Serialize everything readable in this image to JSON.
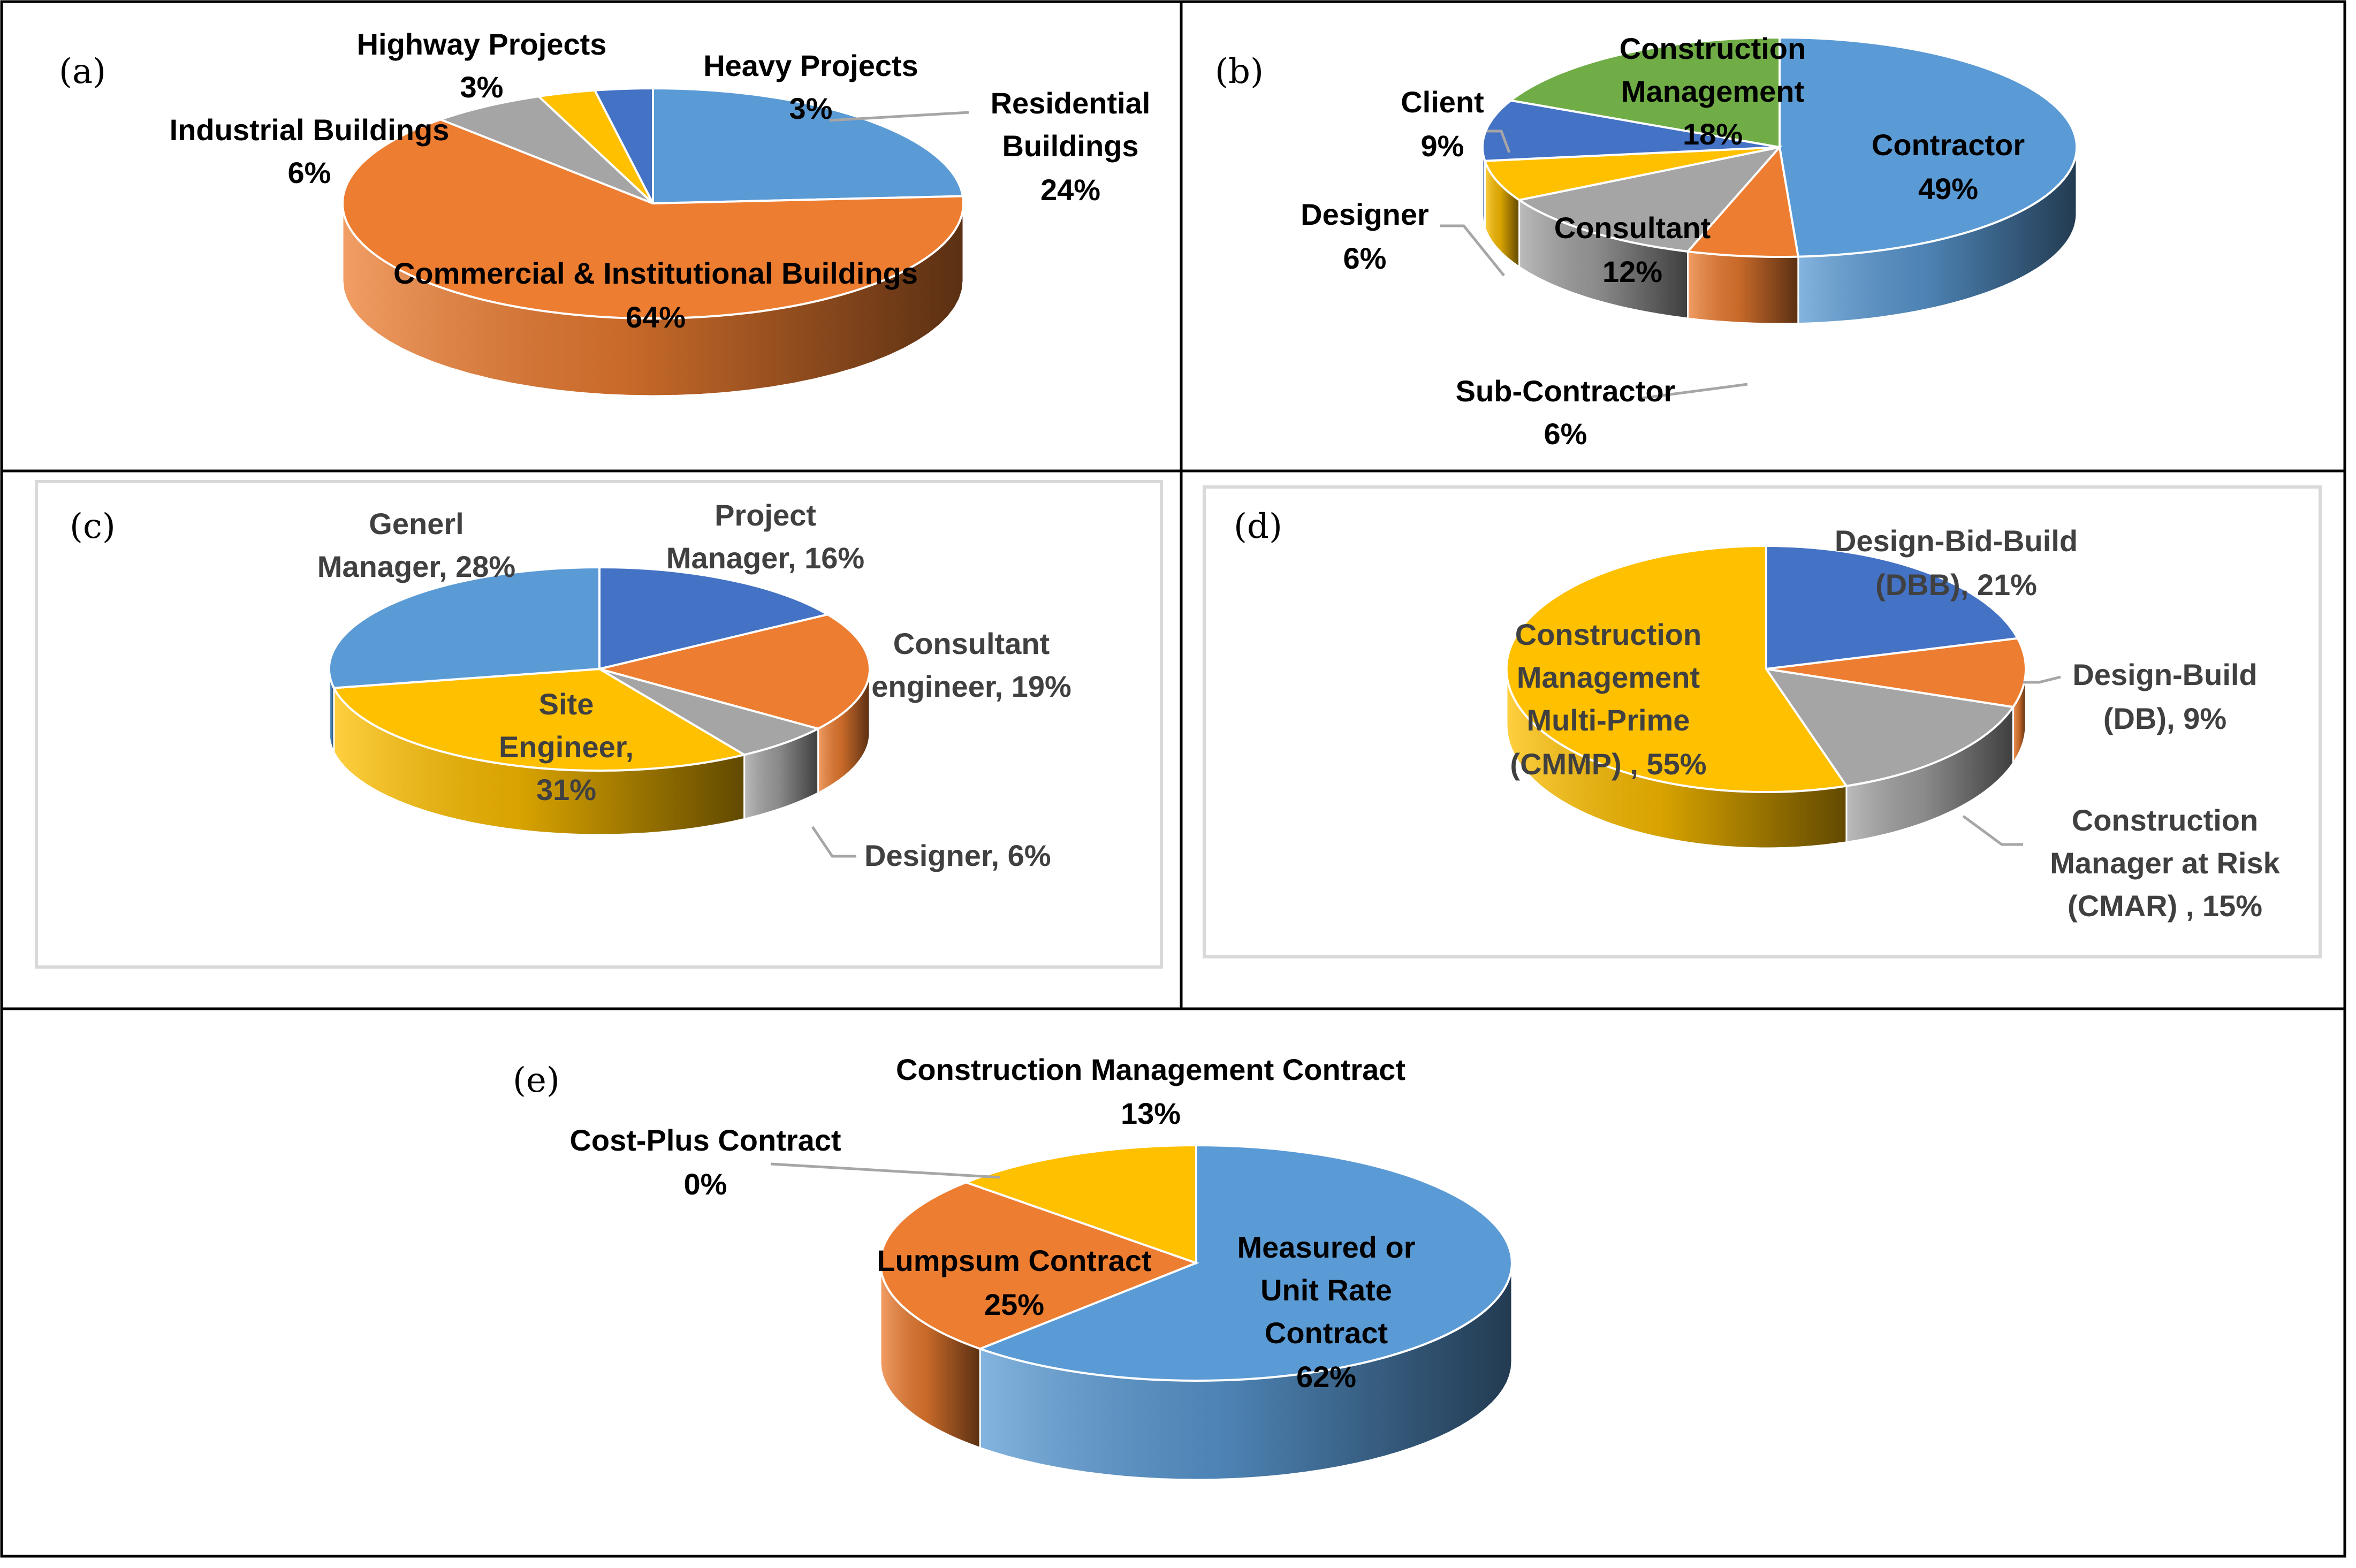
{
  "colors": {
    "blue": "#5B9BD5",
    "orange": "#ED7D31",
    "gray": "#A5A5A5",
    "gold": "#FFC000",
    "darkblue": "#4472C4",
    "green": "#70AD47",
    "label_dark": "#000000",
    "label_gray": "#404040",
    "leader": "#A6A6A6",
    "frame": "#000000",
    "inner_frame": "#D9D9D9"
  },
  "chart_data": [
    {
      "panel_label": "(a)",
      "type": "pie",
      "slices": [
        {
          "name": "Residential Buildings",
          "value": 24,
          "label_lines": [
            "Residential",
            "Buildings",
            "24%"
          ],
          "color": "blue"
        },
        {
          "name": "Commercial & Institutional Buildings",
          "value": 64,
          "label_lines": [
            "Commercial & Institutional Buildings",
            "64%"
          ],
          "color": "orange"
        },
        {
          "name": "Industrial Buildings",
          "value": 6,
          "label_lines": [
            "Industrial Buildings",
            "6%"
          ],
          "color": "gray"
        },
        {
          "name": "Highway Projects",
          "value": 3,
          "label_lines": [
            "Highway Projects",
            "3%"
          ],
          "color": "gold"
        },
        {
          "name": "Heavy Projects",
          "value": 3,
          "label_lines": [
            "Heavy Projects",
            "3%"
          ],
          "color": "darkblue"
        }
      ]
    },
    {
      "panel_label": "(b)",
      "type": "pie",
      "slices": [
        {
          "name": "Contractor",
          "value": 49,
          "label_lines": [
            "Contractor",
            "49%"
          ],
          "color": "blue"
        },
        {
          "name": "Sub-Contractor",
          "value": 6,
          "label_lines": [
            "Sub-Contractor",
            "6%"
          ],
          "color": "orange"
        },
        {
          "name": "Consultant",
          "value": 12,
          "label_lines": [
            "Consultant",
            "12%"
          ],
          "color": "gray"
        },
        {
          "name": "Designer",
          "value": 6,
          "label_lines": [
            "Designer",
            "6%"
          ],
          "color": "gold"
        },
        {
          "name": "Client",
          "value": 9,
          "label_lines": [
            "Client",
            "9%"
          ],
          "color": "darkblue"
        },
        {
          "name": "Construction Management",
          "value": 18,
          "label_lines": [
            "Construction",
            "Management",
            "18%"
          ],
          "color": "green"
        }
      ]
    },
    {
      "panel_label": "(c)",
      "type": "pie",
      "slices": [
        {
          "name": "Project Manager",
          "value": 16,
          "label_lines": [
            "Project",
            "Manager, 16%"
          ],
          "color": "darkblue"
        },
        {
          "name": "Consultant engineer",
          "value": 19,
          "label_lines": [
            "Consultant",
            "engineer, 19%"
          ],
          "color": "orange"
        },
        {
          "name": "Designer",
          "value": 6,
          "label_lines": [
            "Designer, 6%"
          ],
          "color": "gray"
        },
        {
          "name": "Site Engineer",
          "value": 31,
          "label_lines": [
            "Site",
            "Engineer,",
            "31%"
          ],
          "color": "gold"
        },
        {
          "name": "Generl Manager",
          "value": 28,
          "label_lines": [
            "Generl",
            "Manager, 28%"
          ],
          "color": "blue"
        }
      ]
    },
    {
      "panel_label": "(d)",
      "type": "pie",
      "slices": [
        {
          "name": "Design-Bid-Build (DBB)",
          "value": 21,
          "label_lines": [
            "Design-Bid-Build",
            "(DBB), 21%"
          ],
          "color": "darkblue"
        },
        {
          "name": "Design-Build (DB)",
          "value": 9,
          "label_lines": [
            "Design-Build",
            "(DB), 9%"
          ],
          "color": "orange"
        },
        {
          "name": "Construction Manager at Risk (CMAR)",
          "value": 15,
          "label_lines": [
            "Construction",
            "Manager at Risk",
            "(CMAR) , 15%"
          ],
          "color": "gray"
        },
        {
          "name": "Construction Management Multi-Prime (CMMP)",
          "value": 55,
          "label_lines": [
            "Construction",
            "Management",
            "Multi-Prime",
            "(CMMP) , 55%"
          ],
          "color": "gold"
        }
      ]
    },
    {
      "panel_label": "(e)",
      "type": "pie",
      "slices": [
        {
          "name": "Measured or Unit Rate Contract",
          "value": 62,
          "label_lines": [
            "Measured or",
            "Unit Rate",
            "Contract",
            "62%"
          ],
          "color": "blue"
        },
        {
          "name": "Lumpsum Contract",
          "value": 25,
          "label_lines": [
            "Lumpsum Contract",
            "25%"
          ],
          "color": "orange"
        },
        {
          "name": "Cost-Plus Contract",
          "value": 0,
          "label_lines": [
            "Cost-Plus Contract",
            "0%"
          ],
          "color": "gray"
        },
        {
          "name": "Construction Management Contract",
          "value": 13,
          "label_lines": [
            "Construction Management Contract",
            "13%"
          ],
          "color": "gold"
        }
      ]
    }
  ]
}
